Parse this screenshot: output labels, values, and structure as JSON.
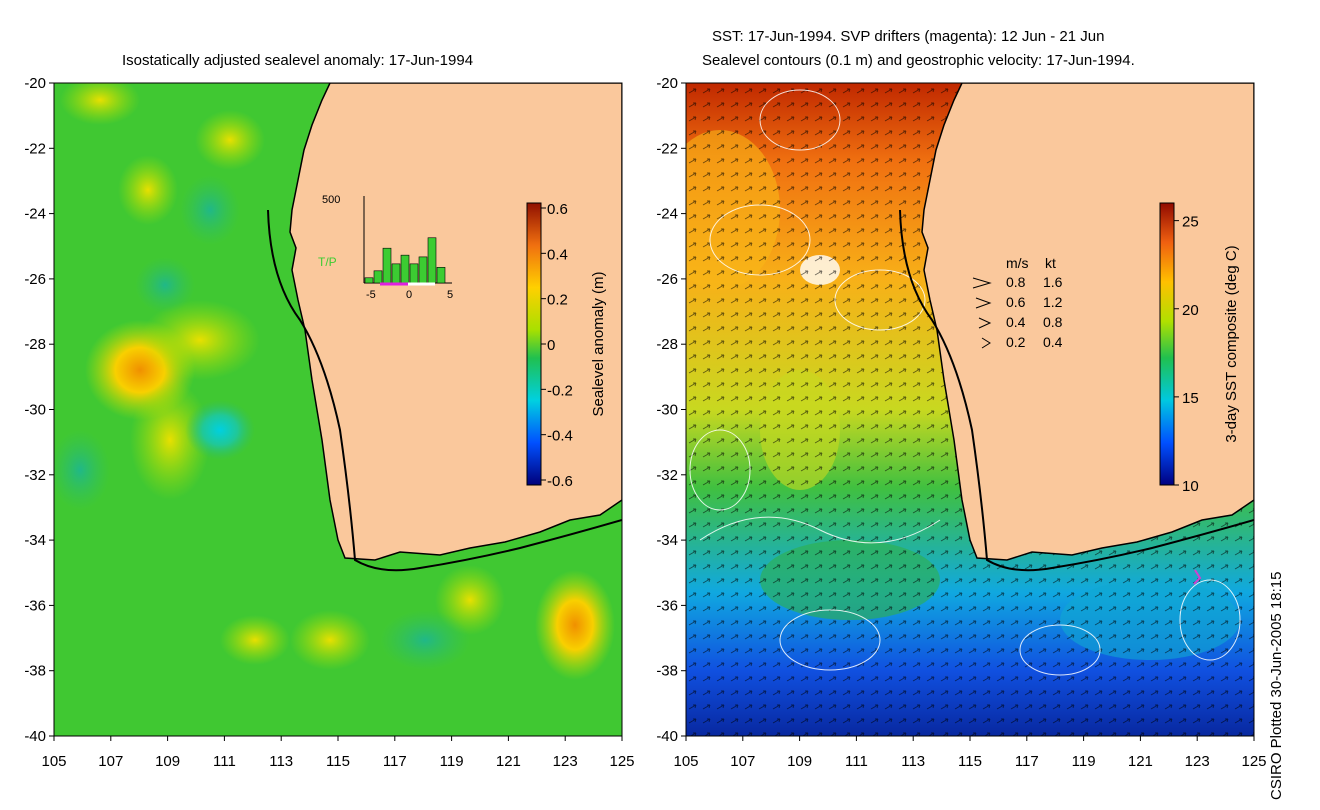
{
  "left_panel": {
    "title": "Isostatically adjusted sealevel anomaly: 17-Jun-1994",
    "colorbar": {
      "label": "Sealevel anomaly (m)",
      "ticks": [
        "0.6",
        "0.4",
        "0.2",
        "0",
        "-0.2",
        "-0.4",
        "-0.6"
      ]
    },
    "inset_histogram": {
      "label": "T/P",
      "y_max_label": "500",
      "x_ticks": [
        "-5",
        "0",
        "5"
      ],
      "values": [
        30,
        70,
        200,
        110,
        160,
        110,
        150,
        260,
        90
      ]
    }
  },
  "right_panel": {
    "title_line1": "SST: 17-Jun-1994. SVP drifters (magenta): 12 Jun - 21 Jun",
    "title_line2": "Sealevel contours (0.1 m) and geostrophic velocity: 17-Jun-1994.",
    "colorbar": {
      "label": "3-day SST composite (deg C)",
      "ticks": [
        "25",
        "20",
        "15",
        "10"
      ]
    },
    "velocity_legend": {
      "header_ms": "m/s",
      "header_kt": "kt",
      "rows": [
        {
          "ms": "0.8",
          "kt": "1.6"
        },
        {
          "ms": "0.6",
          "kt": "1.2"
        },
        {
          "ms": "0.4",
          "kt": "0.8"
        },
        {
          "ms": "0.2",
          "kt": "0.4"
        }
      ]
    }
  },
  "axes": {
    "lat_labels": [
      "-20",
      "-22",
      "-24",
      "-26",
      "-28",
      "-30",
      "-32",
      "-34",
      "-36",
      "-38",
      "-40"
    ],
    "lon_labels": [
      "105",
      "107",
      "109",
      "111",
      "113",
      "115",
      "117",
      "119",
      "121",
      "123",
      "125"
    ]
  },
  "credit": "CSIRO Plotted 30-Jun-2005 18:15",
  "colors": {
    "land": "#fac89c",
    "ocean_green": "#3ccc32",
    "coast": "#000000",
    "drifter": "#d040d0"
  }
}
